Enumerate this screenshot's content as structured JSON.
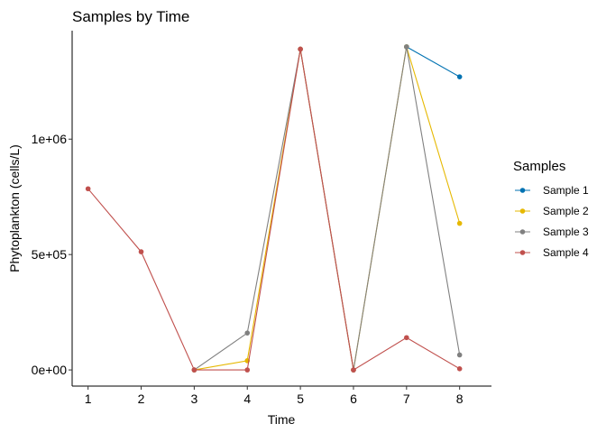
{
  "chart_data": {
    "type": "line",
    "title": "Samples by Time",
    "xlabel": "Time",
    "ylabel": "Phytoplankton (cells/L)",
    "x": [
      1,
      2,
      3,
      4,
      5,
      6,
      7,
      8
    ],
    "xticks": [
      "1",
      "2",
      "3",
      "4",
      "5",
      "6",
      "7",
      "8"
    ],
    "xlim": [
      0.7,
      8.6
    ],
    "yticks": [
      {
        "value": 0,
        "label": "0e+00"
      },
      {
        "value": 500000,
        "label": "5e+05"
      },
      {
        "value": 1000000,
        "label": "1e+06"
      }
    ],
    "ylim": [
      -70000,
      1470000
    ],
    "grid": false,
    "legend": {
      "title": "Samples",
      "placement": "right"
    },
    "series": [
      {
        "name": "Sample 1",
        "color": "#0072B2",
        "points": [
          [
            7,
            1400000
          ],
          [
            8,
            1270000
          ]
        ]
      },
      {
        "name": "Sample 2",
        "color": "#E6B800",
        "points": [
          [
            3,
            0
          ],
          [
            4,
            40000
          ],
          [
            5,
            1390000
          ],
          [
            6,
            0
          ],
          [
            7,
            1400000
          ],
          [
            8,
            635000
          ]
        ]
      },
      {
        "name": "Sample 3",
        "color": "#808080",
        "points": [
          [
            3,
            0
          ],
          [
            4,
            160000
          ],
          [
            5,
            1390000
          ],
          [
            6,
            0
          ],
          [
            7,
            1400000
          ],
          [
            8,
            65000
          ]
        ]
      },
      {
        "name": "Sample 4",
        "color": "#C0504D",
        "points": [
          [
            1,
            785000
          ],
          [
            2,
            512000
          ],
          [
            3,
            0
          ],
          [
            4,
            0
          ],
          [
            5,
            1390000
          ],
          [
            6,
            0
          ],
          [
            7,
            140000
          ],
          [
            8,
            5000
          ]
        ]
      }
    ]
  }
}
